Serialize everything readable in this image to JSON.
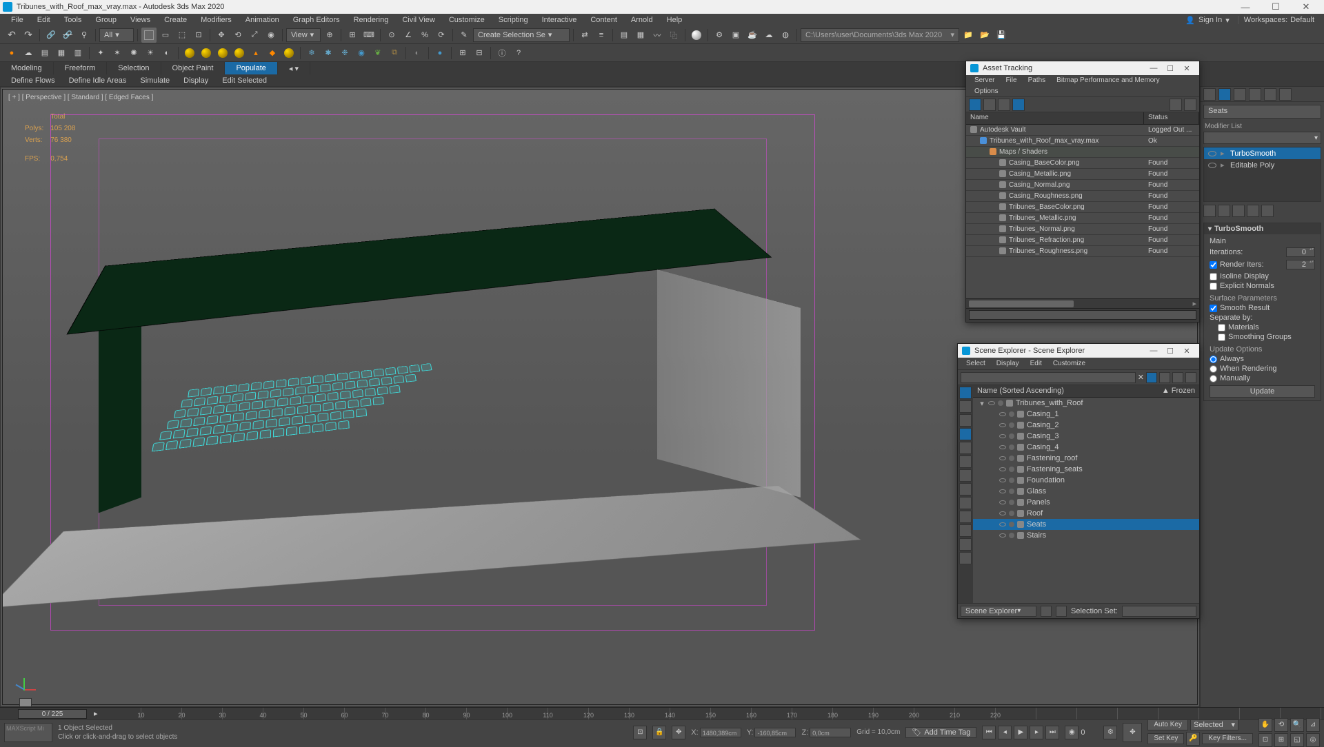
{
  "title": "Tribunes_with_Roof_max_vray.max - Autodesk 3ds Max 2020",
  "menubar": [
    "File",
    "Edit",
    "Tools",
    "Group",
    "Views",
    "Create",
    "Modifiers",
    "Animation",
    "Graph Editors",
    "Rendering",
    "Civil View",
    "Customize",
    "Scripting",
    "Interactive",
    "Content",
    "Arnold",
    "Help"
  ],
  "signin": "Sign In",
  "workspace_label": "Workspaces:",
  "workspace_value": "Default",
  "toolbar1": {
    "selection_set": "Create Selection Se",
    "view_label": "View",
    "all_label": "All",
    "path": "C:\\Users\\user\\Documents\\3ds Max 2020"
  },
  "ribbon_tabs": [
    "Modeling",
    "Freeform",
    "Selection",
    "Object Paint",
    "Populate"
  ],
  "ribbon_active": 4,
  "subribbon": [
    "Define Flows",
    "Define Idle Areas",
    "Simulate",
    "Display",
    "Edit Selected"
  ],
  "viewport": {
    "label": "[ + ] [ Perspective ] [ Standard ] [ Edged Faces ]",
    "stats": {
      "total_label": "Total",
      "polys_label": "Polys:",
      "polys": "105 208",
      "verts_label": "Verts:",
      "verts": "76 380",
      "fps_label": "FPS:",
      "fps": "0,754"
    }
  },
  "asset_panel": {
    "title": "Asset Tracking",
    "menus": [
      "Server",
      "File",
      "Paths",
      "Bitmap Performance and Memory",
      "Options"
    ],
    "cols": {
      "name": "Name",
      "status": "Status"
    },
    "rows": [
      {
        "name": "Autodesk Vault",
        "status": "Logged Out ...",
        "indent": 0,
        "icon": "#888"
      },
      {
        "name": "Tribunes_with_Roof_max_vray.max",
        "status": "Ok",
        "indent": 1,
        "icon": "#4a90d9"
      },
      {
        "name": "Maps / Shaders",
        "status": "",
        "indent": 2,
        "icon": "#d98c4a",
        "header": true
      },
      {
        "name": "Casing_BaseColor.png",
        "status": "Found",
        "indent": 3,
        "icon": "#888"
      },
      {
        "name": "Casing_Metallic.png",
        "status": "Found",
        "indent": 3,
        "icon": "#888"
      },
      {
        "name": "Casing_Normal.png",
        "status": "Found",
        "indent": 3,
        "icon": "#888"
      },
      {
        "name": "Casing_Roughness.png",
        "status": "Found",
        "indent": 3,
        "icon": "#888"
      },
      {
        "name": "Tribunes_BaseColor.png",
        "status": "Found",
        "indent": 3,
        "icon": "#888"
      },
      {
        "name": "Tribunes_Metallic.png",
        "status": "Found",
        "indent": 3,
        "icon": "#888"
      },
      {
        "name": "Tribunes_Normal.png",
        "status": "Found",
        "indent": 3,
        "icon": "#888"
      },
      {
        "name": "Tribunes_Refraction.png",
        "status": "Found",
        "indent": 3,
        "icon": "#888"
      },
      {
        "name": "Tribunes_Roughness.png",
        "status": "Found",
        "indent": 3,
        "icon": "#888"
      }
    ]
  },
  "scene_explorer": {
    "title": "Scene Explorer - Scene Explorer",
    "menus": [
      "Select",
      "Display",
      "Edit",
      "Customize"
    ],
    "header_name": "Name (Sorted Ascending)",
    "header_frozen": "▲ Frozen",
    "footer_label": "Scene Explorer",
    "selection_set_label": "Selection Set:",
    "tree": [
      {
        "name": "Tribunes_with_Roof",
        "indent": 0,
        "expanded": true,
        "sel": false
      },
      {
        "name": "Casing_1",
        "indent": 1,
        "sel": false
      },
      {
        "name": "Casing_2",
        "indent": 1,
        "sel": false
      },
      {
        "name": "Casing_3",
        "indent": 1,
        "sel": false
      },
      {
        "name": "Casing_4",
        "indent": 1,
        "sel": false
      },
      {
        "name": "Fastening_roof",
        "indent": 1,
        "sel": false
      },
      {
        "name": "Fastening_seats",
        "indent": 1,
        "sel": false
      },
      {
        "name": "Foundation",
        "indent": 1,
        "sel": false
      },
      {
        "name": "Glass",
        "indent": 1,
        "sel": false
      },
      {
        "name": "Panels",
        "indent": 1,
        "sel": false
      },
      {
        "name": "Roof",
        "indent": 1,
        "sel": false
      },
      {
        "name": "Seats",
        "indent": 1,
        "sel": true
      },
      {
        "name": "Stairs",
        "indent": 1,
        "sel": false
      }
    ]
  },
  "cmd_panel": {
    "obj_name": "Seats",
    "modifier_list_label": "Modifier List",
    "stack": [
      {
        "name": "TurboSmooth",
        "sel": true
      },
      {
        "name": "Editable Poly",
        "sel": false
      }
    ],
    "rollout_title": "TurboSmooth",
    "main_label": "Main",
    "iterations_label": "Iterations:",
    "iterations": "0",
    "render_iters_label": "Render Iters:",
    "render_iters": "2",
    "isoline_label": "Isoline Display",
    "explicit_label": "Explicit Normals",
    "surface_label": "Surface Parameters",
    "smooth_result_label": "Smooth Result",
    "separate_label": "Separate by:",
    "materials_label": "Materials",
    "smoothing_groups_label": "Smoothing Groups",
    "update_label": "Update Options",
    "always_label": "Always",
    "when_rendering_label": "When Rendering",
    "manually_label": "Manually",
    "update_btn": "Update"
  },
  "timeline": {
    "frame": "0 / 225",
    "ticks": [
      10,
      20,
      30,
      40,
      50,
      60,
      70,
      80,
      90,
      100,
      110,
      120,
      130,
      140,
      150,
      160,
      170,
      180,
      190,
      200,
      210,
      220
    ]
  },
  "statusbar": {
    "maxscript": "MAXScript Mi",
    "selected": "1 Object Selected",
    "hint": "Click or click-and-drag to select objects",
    "x_label": "X:",
    "x": "1480,389cm",
    "y_label": "Y:",
    "y": "-160,85cm",
    "z_label": "Z:",
    "z": "0,0cm",
    "grid": "Grid = 10,0cm",
    "add_time_tag": "Add Time Tag",
    "autokey": "Auto Key",
    "setkey": "Set Key",
    "selected_filter": "Selected",
    "keyfilters": "Key Filters..."
  }
}
